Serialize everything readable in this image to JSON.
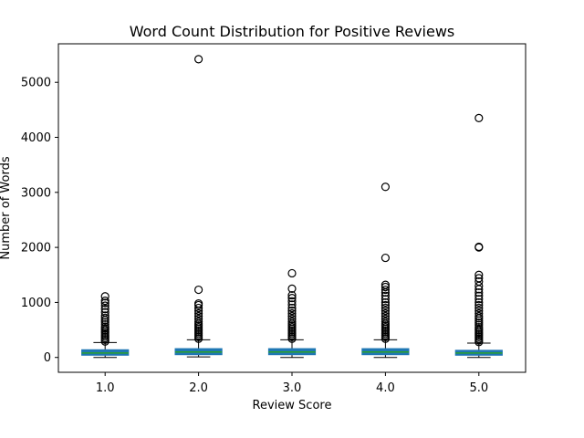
{
  "chart_data": {
    "type": "box",
    "title": "Word Count Distribution for Positive Reviews",
    "xlabel": "Review Score",
    "ylabel": "Number of Words",
    "categories": [
      "1.0",
      "2.0",
      "3.0",
      "4.0",
      "5.0"
    ],
    "ylim": [
      -270,
      5700
    ],
    "yticks": [
      0,
      1000,
      2000,
      3000,
      4000,
      5000
    ],
    "grid": false,
    "box_color": "#1f77b4",
    "median_color": "#2ca02c",
    "boxes": [
      {
        "category": "1.0",
        "whisker_low": 0,
        "q1": 40,
        "median": 80,
        "q3": 140,
        "whisker_high": 270,
        "outliers": [
          290,
          320,
          350,
          380,
          410,
          440,
          470,
          500,
          530,
          560,
          600,
          640,
          680,
          720,
          760,
          820,
          880,
          940,
          990,
          1030,
          1110
        ]
      },
      {
        "category": "2.0",
        "whisker_low": 10,
        "q1": 50,
        "median": 100,
        "q3": 160,
        "whisker_high": 320,
        "outliers": [
          340,
          370,
          400,
          430,
          460,
          490,
          520,
          550,
          580,
          610,
          650,
          700,
          750,
          800,
          850,
          900,
          950,
          980,
          1230,
          5420
        ]
      },
      {
        "category": "3.0",
        "whisker_low": 0,
        "q1": 50,
        "median": 100,
        "q3": 160,
        "whisker_high": 320,
        "outliers": [
          340,
          370,
          400,
          430,
          460,
          490,
          520,
          550,
          580,
          610,
          650,
          700,
          750,
          800,
          850,
          900,
          960,
          1020,
          1080,
          1130,
          1250,
          1530
        ]
      },
      {
        "category": "4.0",
        "whisker_low": 0,
        "q1": 50,
        "median": 100,
        "q3": 160,
        "whisker_high": 320,
        "outliers": [
          340,
          370,
          400,
          430,
          460,
          490,
          520,
          550,
          580,
          610,
          650,
          700,
          750,
          800,
          850,
          900,
          950,
          1000,
          1060,
          1120,
          1180,
          1230,
          1280,
          1320,
          1810,
          3100
        ]
      },
      {
        "category": "5.0",
        "whisker_low": 0,
        "q1": 40,
        "median": 80,
        "q3": 130,
        "whisker_high": 260,
        "outliers": [
          280,
          310,
          340,
          370,
          400,
          430,
          460,
          490,
          520,
          550,
          590,
          630,
          670,
          710,
          750,
          800,
          850,
          900,
          950,
          1000,
          1060,
          1120,
          1180,
          1240,
          1300,
          1380,
          1440,
          1500,
          2000,
          2010,
          4350
        ]
      }
    ]
  }
}
